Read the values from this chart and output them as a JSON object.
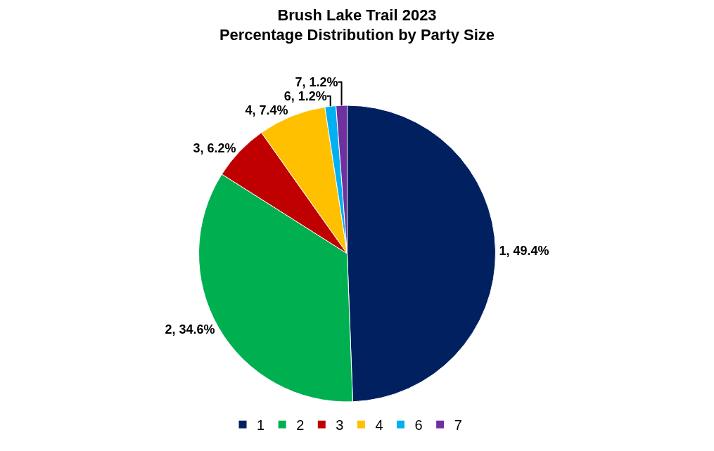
{
  "chart_data": {
    "type": "pie",
    "title": "Brush Lake Trail 2023\nPercentage Distribution by Party Size",
    "categories": [
      "1",
      "2",
      "3",
      "4",
      "6",
      "7"
    ],
    "values": [
      49.4,
      34.6,
      6.2,
      7.4,
      1.2,
      1.2
    ],
    "colors": [
      "#002060",
      "#00b050",
      "#c00000",
      "#ffc000",
      "#00b0f0",
      "#7030a0"
    ],
    "value_labels": [
      "1, 49.4%",
      "2, 34.6%",
      "3, 6.2%",
      "4, 7.4%",
      "6, 1.2%",
      "7, 1.2%"
    ],
    "legend": "bottom"
  }
}
